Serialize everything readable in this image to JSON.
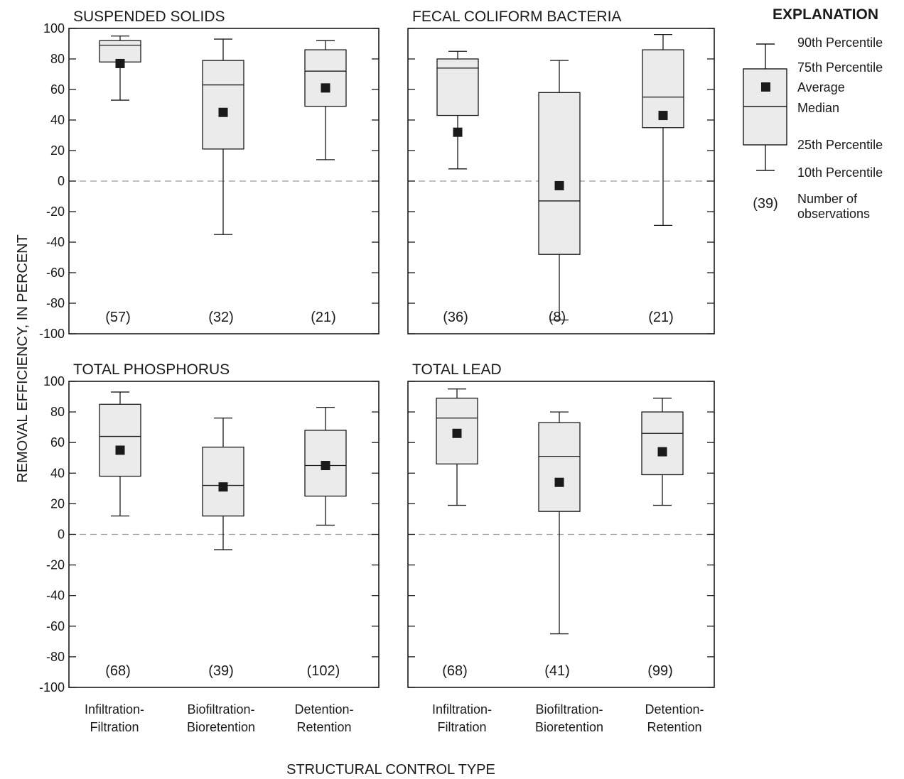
{
  "figure": {
    "y_axis_label": "REMOVAL EFFICIENCY, IN PERCENT",
    "x_axis_label": "STRUCTURAL CONTROL TYPE",
    "categories": [
      "Infiltration-\nFiltration",
      "Biofiltration-\nBioretention",
      "Detention-\nRetention"
    ],
    "colors": {
      "box_fill": "#ebebeb",
      "stroke": "#1a1a1a",
      "zero_line": "#9a9a9a",
      "mean_marker": "#1a1a1a"
    }
  },
  "explanation": {
    "title": "EXPLANATION",
    "p90": "90th Percentile",
    "p75": "75th Percentile",
    "average": "Average",
    "median": "Median",
    "p25": "25th Percentile",
    "p10": "10th Percentile",
    "n_example": "(39)",
    "n_line1": "Number of",
    "n_line2": "observations"
  },
  "chart_data": [
    {
      "type": "box",
      "title": "SUSPENDED SOLIDS",
      "ylabel": "REMOVAL EFFICIENCY, IN PERCENT",
      "ylim": [
        -100,
        100
      ],
      "yticks": [
        100,
        80,
        60,
        40,
        20,
        0,
        -20,
        -40,
        -60,
        -80,
        -100
      ],
      "categories": [
        "Infiltration-Filtration",
        "Biofiltration-Bioretention",
        "Detention-Retention"
      ],
      "boxes": [
        {
          "p10": 53,
          "p25": 78,
          "median": 89,
          "p75": 92,
          "p90": 95,
          "mean": 77,
          "n": "(57)"
        },
        {
          "p10": -35,
          "p25": 21,
          "median": 63,
          "p75": 79,
          "p90": 93,
          "mean": 45,
          "n": "(32)"
        },
        {
          "p10": 14,
          "p25": 49,
          "median": 72,
          "p75": 86,
          "p90": 92,
          "mean": 61,
          "n": "(21)"
        }
      ]
    },
    {
      "type": "box",
      "title": "FECAL COLIFORM BACTERIA",
      "ylim": [
        -100,
        100
      ],
      "yticks": [
        100,
        80,
        60,
        40,
        20,
        0,
        -20,
        -40,
        -60,
        -80,
        -100
      ],
      "categories": [
        "Infiltration-Filtration",
        "Biofiltration-Bioretention",
        "Detention-Retention"
      ],
      "boxes": [
        {
          "p10": 8,
          "p25": 43,
          "median": 74,
          "p75": 80,
          "p90": 85,
          "mean": 32,
          "n": "(36)"
        },
        {
          "p10": -91,
          "p25": -48,
          "median": -13,
          "p75": 58,
          "p90": 79,
          "mean": -3,
          "n": "(8)"
        },
        {
          "p10": -29,
          "p25": 35,
          "median": 55,
          "p75": 86,
          "p90": 96,
          "mean": 43,
          "n": "(21)"
        }
      ]
    },
    {
      "type": "box",
      "title": "TOTAL PHOSPHORUS",
      "ylabel": "REMOVAL EFFICIENCY, IN PERCENT",
      "xlabel": "STRUCTURAL CONTROL TYPE",
      "ylim": [
        -100,
        100
      ],
      "yticks": [
        100,
        80,
        60,
        40,
        20,
        0,
        -20,
        -40,
        -60,
        -80,
        -100
      ],
      "categories": [
        "Infiltration-Filtration",
        "Biofiltration-Bioretention",
        "Detention-Retention"
      ],
      "boxes": [
        {
          "p10": 12,
          "p25": 38,
          "median": 64,
          "p75": 85,
          "p90": 93,
          "mean": 55,
          "n": "(68)"
        },
        {
          "p10": -10,
          "p25": 12,
          "median": 32,
          "p75": 57,
          "p90": 76,
          "mean": 31,
          "n": "(39)"
        },
        {
          "p10": 6,
          "p25": 25,
          "median": 45,
          "p75": 68,
          "p90": 83,
          "mean": 45,
          "n": "(102)"
        }
      ]
    },
    {
      "type": "box",
      "title": "TOTAL LEAD",
      "xlabel": "STRUCTURAL CONTROL TYPE",
      "ylim": [
        -100,
        100
      ],
      "yticks": [
        100,
        80,
        60,
        40,
        20,
        0,
        -20,
        -40,
        -60,
        -80,
        -100
      ],
      "categories": [
        "Infiltration-Filtration",
        "Biofiltration-Bioretention",
        "Detention-Retention"
      ],
      "boxes": [
        {
          "p10": 19,
          "p25": 46,
          "median": 76,
          "p75": 89,
          "p90": 95,
          "mean": 66,
          "n": "(68)"
        },
        {
          "p10": -65,
          "p25": 15,
          "median": 51,
          "p75": 73,
          "p90": 80,
          "mean": 34,
          "n": "(41)"
        },
        {
          "p10": 19,
          "p25": 39,
          "median": 66,
          "p75": 80,
          "p90": 89,
          "mean": 54,
          "n": "(99)"
        }
      ]
    }
  ]
}
